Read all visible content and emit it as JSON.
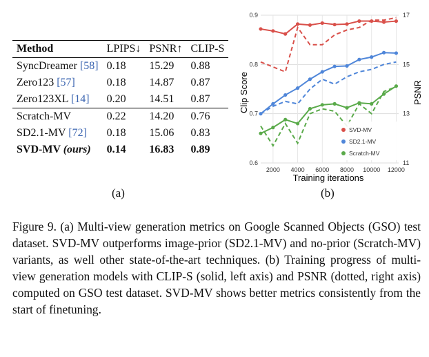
{
  "table": {
    "headers": [
      "Method",
      "LPIPS↓",
      "PSNR↑",
      "CLIP-S"
    ],
    "group1": [
      {
        "name": "SyncDreamer",
        "ref": "[58]",
        "lpips": "0.18",
        "psnr": "15.29",
        "clip": "0.88"
      },
      {
        "name": "Zero123",
        "ref": "[57]",
        "lpips": "0.18",
        "psnr": "14.87",
        "clip": "0.87"
      },
      {
        "name": "Zero123XL",
        "ref": "[14]",
        "lpips": "0.20",
        "psnr": "14.51",
        "clip": "0.87"
      }
    ],
    "group2": [
      {
        "name": "Scratch-MV",
        "ref": "",
        "lpips": "0.22",
        "psnr": "14.20",
        "clip": "0.76"
      },
      {
        "name": "SD2.1-MV",
        "ref": "[72]",
        "lpips": "0.18",
        "psnr": "15.06",
        "clip": "0.83"
      },
      {
        "name": "SVD-MV",
        "ref": "(ours)",
        "lpips": "0.14",
        "psnr": "16.83",
        "clip": "0.89"
      }
    ]
  },
  "labels": {
    "a": "(a)",
    "b": "(b)"
  },
  "chart_data": {
    "type": "line",
    "xlabel": "Training iterations",
    "ylabel_left": "Clip Score",
    "ylabel_right": "PSNR",
    "x_ticks": [
      "2000",
      "4000",
      "6000",
      "8000",
      "10000",
      "12000"
    ],
    "x_tick_values": [
      2000,
      4000,
      6000,
      8000,
      10000,
      12000
    ],
    "xlim": [
      1000,
      12200
    ],
    "ylim_left": [
      0.6,
      0.9
    ],
    "ylim_right": [
      11,
      17
    ],
    "y_ticks_left": [
      "0.6",
      "0.7",
      "0.8",
      "0.9"
    ],
    "y_tick_values_left": [
      0.6,
      0.7,
      0.8,
      0.9
    ],
    "y_ticks_right": [
      "11",
      "13",
      "15",
      "17"
    ],
    "y_tick_values_right": [
      11,
      13,
      15,
      17
    ],
    "grid": true,
    "legend_position": "bottom-right",
    "x": [
      1000,
      2000,
      3000,
      4000,
      5000,
      6000,
      7000,
      8000,
      9000,
      10000,
      11000,
      12000
    ],
    "series": [
      {
        "name": "SVD-MV",
        "color": "#d9504a",
        "clip": [
          0.872,
          0.868,
          0.862,
          0.882,
          0.88,
          0.884,
          0.881,
          0.882,
          0.888,
          0.888,
          0.886,
          0.888
        ],
        "psnr": [
          15.1,
          14.9,
          14.7,
          16.5,
          15.8,
          15.8,
          16.2,
          16.4,
          16.5,
          16.8,
          16.8,
          16.9
        ]
      },
      {
        "name": "SD2.1-MV",
        "color": "#4f86d9",
        "clip": [
          0.7,
          0.72,
          0.738,
          0.752,
          0.77,
          0.785,
          0.796,
          0.797,
          0.81,
          0.815,
          0.824,
          0.823
        ],
        "psnr": [
          13.0,
          13.3,
          13.5,
          13.4,
          14.0,
          14.4,
          14.2,
          14.5,
          14.7,
          14.8,
          15.0,
          15.1
        ]
      },
      {
        "name": "Scratch-MV",
        "color": "#5aaa4a",
        "clip": [
          0.66,
          0.672,
          0.688,
          0.68,
          0.71,
          0.718,
          0.72,
          0.712,
          0.722,
          0.72,
          0.74,
          0.756
        ],
        "psnr": [
          12.5,
          11.7,
          12.6,
          11.8,
          13.0,
          13.2,
          13.1,
          12.5,
          13.4,
          13.0,
          13.9,
          14.1
        ]
      }
    ]
  },
  "caption": "Figure 9. (a) Multi-view generation metrics on Google Scanned Objects (GSO) test dataset. SVD-MV outperforms image-prior (SD2.1-MV) and no-prior (Scratch-MV) variants, as well other state-of-the-art techniques. (b) Training progress of multi-view generation models with CLIP-S (solid, left axis) and PSNR (dotted, right axis) computed on GSO test dataset. SVD-MV shows better metrics consistently from the start of finetuning."
}
